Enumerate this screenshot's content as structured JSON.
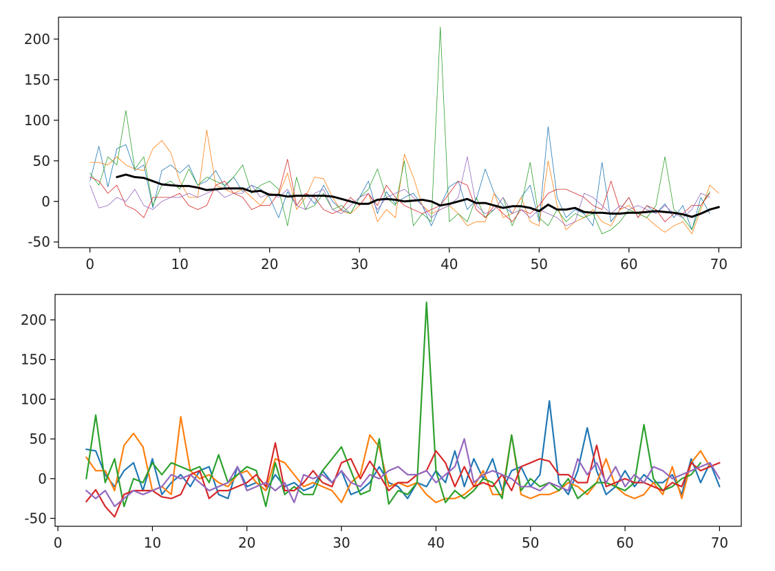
{
  "chart_data": [
    {
      "type": "line",
      "title": "",
      "xlabel": "",
      "ylabel": "",
      "xlim": [
        -3.5,
        72.5
      ],
      "ylim": [
        -57,
        227
      ],
      "xticks": [
        0,
        10,
        20,
        30,
        40,
        50,
        60,
        70
      ],
      "yticks": [
        -50,
        0,
        50,
        100,
        150,
        200
      ],
      "grid": false,
      "legend": "none",
      "x_start": 0,
      "series": [
        {
          "color": "#1f77b4",
          "width": 0.8,
          "values": [
            25,
            68,
            18,
            65,
            70,
            38,
            45,
            -8,
            38,
            45,
            35,
            45,
            20,
            25,
            38,
            18,
            30,
            12,
            20,
            15,
            5,
            -20,
            12,
            -5,
            10,
            -3,
            20,
            0,
            -10,
            -15,
            5,
            25,
            -15,
            12,
            -3,
            5,
            10,
            -5,
            -30,
            -5,
            18,
            25,
            -10,
            2,
            40,
            10,
            -5,
            -15,
            5,
            20,
            -25,
            92,
            5,
            -20,
            -10,
            -15,
            -30,
            48,
            -25,
            -10,
            5,
            -20,
            -5,
            -15,
            -3,
            -20,
            -5,
            -35,
            5,
            -15
          ]
        },
        {
          "color": "#ff7f0e",
          "width": 0.8,
          "values": [
            48,
            48,
            45,
            55,
            45,
            40,
            38,
            65,
            75,
            60,
            25,
            5,
            5,
            88,
            20,
            15,
            10,
            15,
            5,
            -5,
            10,
            8,
            35,
            -10,
            5,
            30,
            28,
            5,
            -12,
            -15,
            -5,
            10,
            -25,
            -10,
            -20,
            58,
            30,
            -5,
            -15,
            -10,
            -5,
            -15,
            -30,
            -25,
            -25,
            10,
            -20,
            -15,
            5,
            -25,
            -30,
            50,
            -5,
            -35,
            -25,
            -20,
            -10,
            -25,
            -30,
            -10,
            -5,
            -15,
            -20,
            -30,
            -38,
            -30,
            -25,
            -40,
            -10,
            20,
            10
          ]
        },
        {
          "color": "#2ca02c",
          "width": 0.8,
          "values": [
            35,
            20,
            55,
            45,
            112,
            40,
            55,
            -5,
            20,
            25,
            15,
            40,
            20,
            30,
            25,
            20,
            30,
            45,
            10,
            20,
            25,
            15,
            -30,
            30,
            -10,
            -5,
            10,
            -10,
            -5,
            -15,
            5,
            15,
            40,
            5,
            -5,
            50,
            -30,
            -15,
            -25,
            215,
            -25,
            -15,
            -25,
            5,
            -20,
            -10,
            5,
            -30,
            -5,
            48,
            -20,
            -30,
            -10,
            -25,
            -15,
            -20,
            -15,
            -40,
            -35,
            -25,
            -10,
            -15,
            -20,
            -5,
            55,
            -10,
            -20,
            -35,
            -5,
            12
          ]
        },
        {
          "color": "#d62728",
          "width": 0.8,
          "values": [
            30,
            25,
            10,
            20,
            -5,
            -10,
            -20,
            5,
            5,
            5,
            10,
            -5,
            -10,
            -5,
            20,
            25,
            10,
            5,
            -10,
            -5,
            -5,
            10,
            52,
            -5,
            10,
            5,
            -10,
            -15,
            -10,
            5,
            -5,
            10,
            -5,
            20,
            5,
            -5,
            -10,
            -15,
            -10,
            -5,
            10,
            25,
            20,
            -10,
            -20,
            -5,
            -15,
            -25,
            -10,
            -15,
            -5,
            10,
            15,
            15,
            10,
            5,
            -5,
            -10,
            25,
            -10,
            5,
            -20,
            -5,
            -10,
            -25,
            -15,
            -15,
            -5,
            -5,
            10
          ]
        },
        {
          "color": "#9467bd",
          "width": 0.8,
          "values": [
            20,
            -8,
            -5,
            5,
            0,
            15,
            -5,
            -10,
            0,
            5,
            5,
            10,
            5,
            10,
            15,
            5,
            10,
            10,
            20,
            5,
            10,
            5,
            15,
            -5,
            -10,
            10,
            15,
            -10,
            -15,
            -5,
            5,
            10,
            -10,
            5,
            10,
            15,
            5,
            -5,
            -20,
            -10,
            -5,
            5,
            55,
            -5,
            -15,
            -10,
            5,
            -15,
            -10,
            -20,
            -10,
            -15,
            -20,
            -30,
            -25,
            10,
            5,
            -5,
            -15,
            -5,
            -10,
            -5,
            -10,
            -15,
            -5,
            -15,
            -20,
            -10,
            10,
            5
          ]
        },
        {
          "color": "#000000",
          "width": 3,
          "x_start": 3,
          "values": [
            30,
            33,
            30,
            29,
            25,
            21,
            20,
            19,
            19,
            17,
            14,
            15,
            16,
            16,
            16,
            12,
            13,
            8,
            8,
            6,
            7,
            7,
            7,
            7,
            6,
            3,
            0,
            -3,
            -3,
            2,
            3,
            2,
            0,
            1,
            2,
            0,
            -5,
            -3,
            0,
            3,
            -2,
            -2,
            -5,
            -8,
            -6,
            -6,
            -8,
            -12,
            -4,
            -10,
            -10,
            -8,
            -13,
            -14,
            -14,
            -15,
            -15,
            -14,
            -14,
            -13,
            -12,
            -13,
            -14,
            -16,
            -19,
            -15,
            -10,
            -7
          ]
        }
      ]
    },
    {
      "type": "line",
      "title": "",
      "xlabel": "",
      "ylabel": "",
      "xlim": [
        -0.3,
        72.3
      ],
      "ylim": [
        -60,
        232
      ],
      "xticks": [
        0,
        10,
        20,
        30,
        40,
        50,
        60,
        70
      ],
      "yticks": [
        -50,
        0,
        50,
        100,
        150,
        200
      ],
      "grid": false,
      "legend": "none",
      "x_start": 3,
      "series": [
        {
          "color": "#1f77b4",
          "width": 2.2,
          "values": [
            37,
            35,
            5,
            -10,
            10,
            20,
            -15,
            25,
            -20,
            -5,
            5,
            -10,
            10,
            15,
            -20,
            -25,
            15,
            -10,
            -5,
            -15,
            5,
            -10,
            -5,
            -15,
            -10,
            10,
            -5,
            10,
            -20,
            -15,
            -5,
            15,
            -5,
            -10,
            -25,
            -5,
            -10,
            10,
            -5,
            35,
            -10,
            25,
            0,
            25,
            -15,
            10,
            15,
            -10,
            5,
            98,
            -5,
            -20,
            10,
            64,
            10,
            -20,
            -10,
            10,
            -10,
            5,
            -5,
            -5,
            5,
            -20,
            25,
            -5,
            20,
            -10
          ]
        },
        {
          "color": "#ff7f0e",
          "width": 2.2,
          "values": [
            27,
            10,
            10,
            -15,
            42,
            57,
            40,
            -15,
            -10,
            -20,
            78,
            10,
            0,
            5,
            -5,
            -10,
            5,
            10,
            -5,
            -15,
            25,
            20,
            5,
            -10,
            -5,
            -10,
            -15,
            -30,
            -5,
            5,
            55,
            40,
            -10,
            -5,
            -10,
            -5,
            -20,
            -30,
            -25,
            -25,
            -20,
            -10,
            10,
            -20,
            -20,
            55,
            -20,
            -25,
            -20,
            -20,
            -15,
            -5,
            -10,
            -20,
            -5,
            25,
            -10,
            -20,
            -25,
            -20,
            -5,
            -20,
            15,
            -25,
            20,
            35,
            15
          ]
        },
        {
          "color": "#2ca02c",
          "width": 2.2,
          "values": [
            0,
            80,
            -5,
            25,
            -35,
            0,
            -5,
            20,
            5,
            20,
            15,
            10,
            15,
            -5,
            30,
            -5,
            5,
            15,
            10,
            -35,
            20,
            -20,
            -10,
            -20,
            -20,
            10,
            25,
            40,
            10,
            -20,
            -15,
            50,
            -32,
            -15,
            -20,
            -5,
            222,
            10,
            -30,
            -15,
            -25,
            -15,
            0,
            -5,
            -25,
            55,
            -15,
            0,
            -10,
            -5,
            -15,
            0,
            -25,
            -15,
            -5,
            -5,
            -10,
            -15,
            -5,
            68,
            0,
            -15,
            -10,
            0,
            5,
            20
          ]
        },
        {
          "color": "#d62728",
          "width": 2.2,
          "values": [
            -29,
            -14,
            -35,
            -48,
            -20,
            -15,
            -15,
            -15,
            -23,
            -25,
            -20,
            5,
            10,
            -25,
            -15,
            -15,
            -10,
            -5,
            5,
            -10,
            45,
            -15,
            -15,
            -5,
            10,
            -5,
            -10,
            20,
            25,
            0,
            22,
            5,
            -15,
            -5,
            -5,
            5,
            10,
            35,
            20,
            -10,
            15,
            -10,
            -5,
            -10,
            5,
            -15,
            15,
            20,
            25,
            22,
            5,
            5,
            -5,
            -5,
            42,
            -10,
            -5,
            0,
            -5,
            -5,
            -10,
            -15,
            -5,
            -10,
            20,
            10,
            15,
            20
          ]
        },
        {
          "color": "#9467bd",
          "width": 2.2,
          "values": [
            -15,
            -25,
            -15,
            -35,
            -25,
            -15,
            -20,
            -15,
            -10,
            5,
            0,
            5,
            -5,
            -15,
            -10,
            -5,
            15,
            -15,
            -10,
            -5,
            -15,
            -5,
            -30,
            5,
            0,
            5,
            -5,
            10,
            -5,
            -10,
            5,
            0,
            10,
            15,
            5,
            5,
            10,
            -5,
            5,
            15,
            50,
            -5,
            5,
            10,
            5,
            0,
            -10,
            -10,
            -15,
            -5,
            -10,
            -15,
            25,
            5,
            20,
            -5,
            15,
            -10,
            5,
            -5,
            15,
            10,
            0,
            5,
            10,
            15,
            20,
            0
          ]
        }
      ]
    }
  ]
}
